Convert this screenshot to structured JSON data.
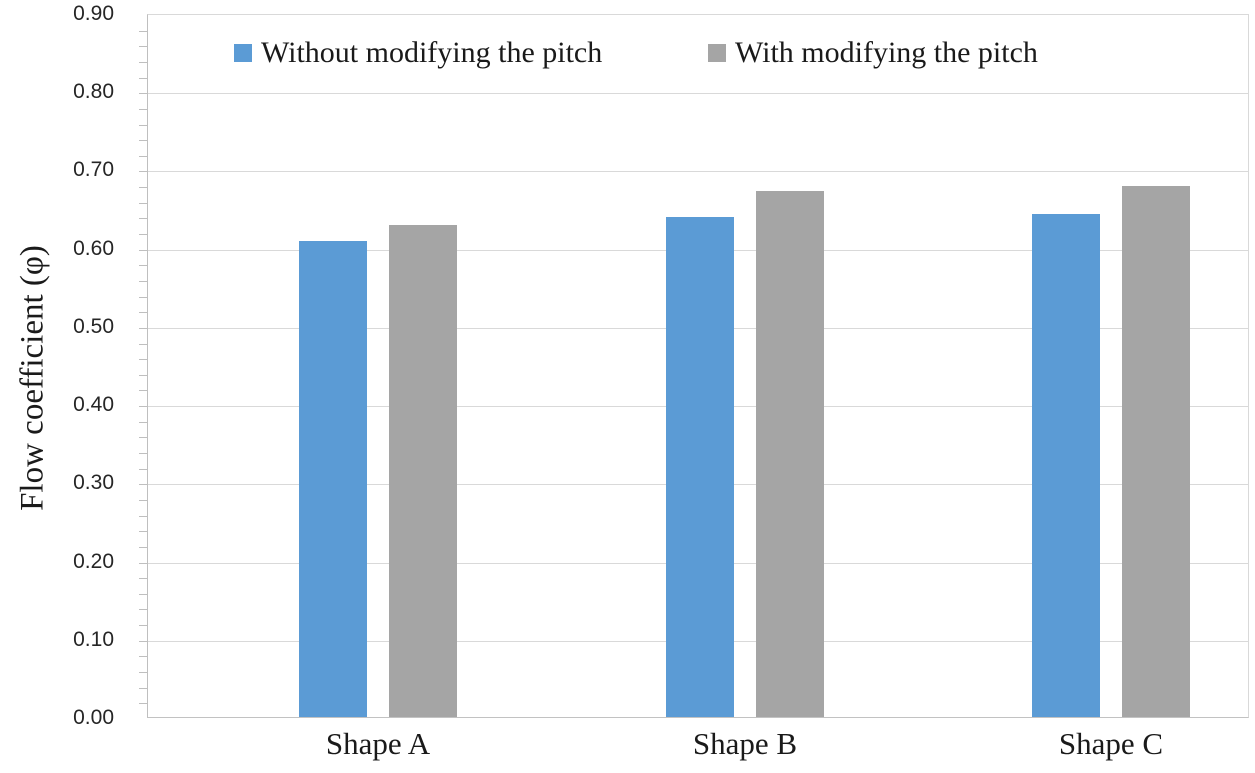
{
  "chart_data": {
    "type": "bar",
    "title": "",
    "categories": [
      "Shape A",
      "Shape B",
      "Shape C"
    ],
    "series": [
      {
        "name": "Without modifying the pitch",
        "color": "#5B9BD5",
        "values": [
          0.608,
          0.639,
          0.643
        ]
      },
      {
        "name": "With modifying the pitch",
        "color": "#A5A5A5",
        "values": [
          0.629,
          0.672,
          0.679
        ]
      }
    ],
    "xlabel": "",
    "ylabel": "Flow coefficient (φ)",
    "ylim": [
      0.0,
      0.9
    ],
    "ytick_step": 0.1,
    "minor_tick_step": 0.02,
    "ytick_labels": [
      "0.00",
      "0.10",
      "0.20",
      "0.30",
      "0.40",
      "0.50",
      "0.60",
      "0.70",
      "0.80",
      "0.90"
    ],
    "grid": "horizontal-major",
    "legend_position": "top-inside",
    "grid_color": "#D9D9D9",
    "axis_color": "#BFBFBF",
    "text_color": "#1A1A1A",
    "background_color": "#FFFFFF"
  }
}
